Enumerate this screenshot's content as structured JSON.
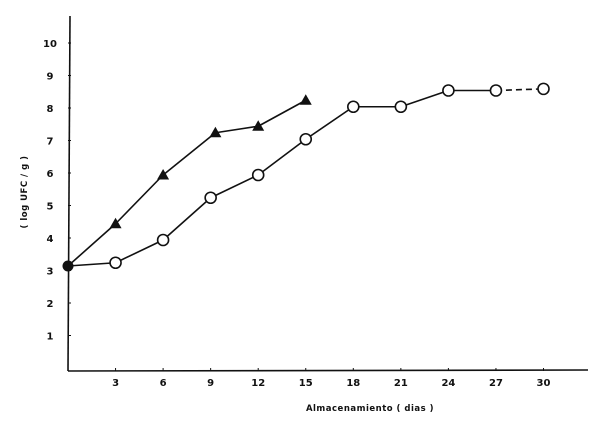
{
  "chart_data": {
    "type": "line",
    "title": "",
    "xlabel": "Almacenamiento ( dias )",
    "ylabel": "( log UFC / g )",
    "xlim": [
      0,
      32
    ],
    "ylim": [
      0,
      11
    ],
    "x_ticks": [
      3,
      6,
      9,
      12,
      15,
      18,
      21,
      24,
      27,
      30
    ],
    "y_ticks": [
      1,
      2,
      3,
      4,
      5,
      6,
      7,
      8,
      9,
      10
    ],
    "grid": false,
    "legend": null,
    "start_point": {
      "x": 0,
      "y": 3.2,
      "marker": "filled-circle"
    },
    "series": [
      {
        "name": "triangles",
        "marker": "filled-triangle",
        "x": [
          0,
          3,
          6,
          9.3,
          12,
          15
        ],
        "values": [
          3.2,
          4.5,
          6.0,
          7.3,
          7.5,
          8.3
        ]
      },
      {
        "name": "circles",
        "marker": "open-circle",
        "x": [
          0,
          3,
          6,
          9,
          12,
          15,
          18,
          21,
          24,
          27,
          30
        ],
        "values": [
          3.2,
          3.3,
          4.0,
          5.3,
          6.0,
          7.1,
          8.1,
          8.1,
          8.6,
          8.6,
          8.65
        ],
        "dashed_last_segment": true
      }
    ]
  },
  "colors": {
    "ink": "#111111",
    "background": "#ffffff"
  }
}
